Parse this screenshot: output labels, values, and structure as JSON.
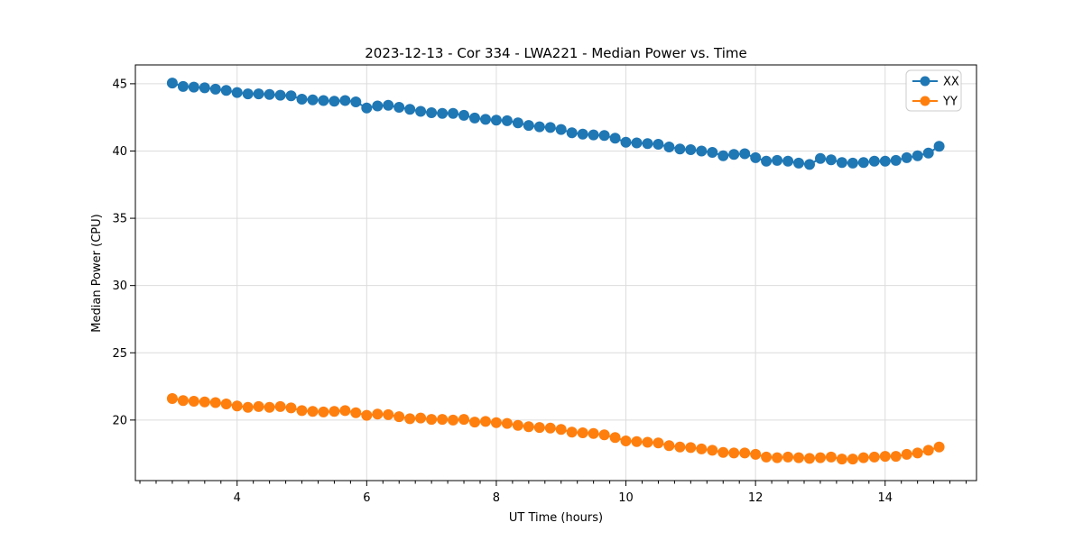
{
  "chart_data": {
    "type": "line",
    "title": "2023-12-13 - Cor 334 - LWA221 - Median Power vs. Time",
    "xlabel": "UT Time (hours)",
    "ylabel": "Median Power (CPU)",
    "xlim": [
      2.43,
      15.41
    ],
    "ylim": [
      15.5,
      46.4
    ],
    "xticks": [
      4,
      6,
      8,
      10,
      12,
      14
    ],
    "xtick_labels": [
      "4",
      "6",
      "8",
      "10",
      "12",
      "14"
    ],
    "x_minor_step": 0.25,
    "yticks": [
      20,
      25,
      30,
      35,
      40,
      45
    ],
    "ytick_labels": [
      "20",
      "25",
      "30",
      "35",
      "40",
      "45"
    ],
    "grid": true,
    "legend": {
      "position": "upper right",
      "entries": [
        "XX",
        "YY"
      ]
    },
    "colors": {
      "grid": "#dcdcdc",
      "spine": "#000000",
      "text": "#000000",
      "series_xx": "#1f77b4",
      "series_yy": "#ff7f0e",
      "legend_border": "#cccccc",
      "legend_bg": "#ffffff"
    },
    "x": [
      3.0,
      3.167,
      3.333,
      3.5,
      3.667,
      3.833,
      4.0,
      4.167,
      4.333,
      4.5,
      4.667,
      4.833,
      5.0,
      5.167,
      5.333,
      5.5,
      5.667,
      5.833,
      6.0,
      6.167,
      6.333,
      6.5,
      6.667,
      6.833,
      7.0,
      7.167,
      7.333,
      7.5,
      7.667,
      7.833,
      8.0,
      8.167,
      8.333,
      8.5,
      8.667,
      8.833,
      9.0,
      9.167,
      9.333,
      9.5,
      9.667,
      9.833,
      10.0,
      10.167,
      10.333,
      10.5,
      10.667,
      10.833,
      11.0,
      11.167,
      11.333,
      11.5,
      11.667,
      11.833,
      12.0,
      12.167,
      12.333,
      12.5,
      12.667,
      12.833,
      13.0,
      13.167,
      13.333,
      13.5,
      13.667,
      13.833,
      14.0,
      14.167,
      14.333,
      14.5,
      14.667,
      14.833
    ],
    "series": [
      {
        "name": "XX",
        "color": "#1f77b4",
        "values": [
          45.05,
          44.8,
          44.75,
          44.7,
          44.6,
          44.5,
          44.35,
          44.25,
          44.25,
          44.2,
          44.15,
          44.1,
          43.85,
          43.8,
          43.75,
          43.7,
          43.75,
          43.65,
          43.2,
          43.35,
          43.4,
          43.25,
          43.1,
          42.95,
          42.85,
          42.8,
          42.8,
          42.65,
          42.45,
          42.35,
          42.3,
          42.25,
          42.1,
          41.9,
          41.8,
          41.75,
          41.6,
          41.35,
          41.25,
          41.2,
          41.15,
          40.95,
          40.65,
          40.6,
          40.55,
          40.5,
          40.3,
          40.15,
          40.1,
          40.0,
          39.9,
          39.65,
          39.75,
          39.8,
          39.5,
          39.25,
          39.3,
          39.25,
          39.1,
          39.0,
          39.45,
          39.35,
          39.15,
          39.1,
          39.15,
          39.25,
          39.25,
          39.3,
          39.5,
          39.65,
          39.85,
          40.35
        ]
      },
      {
        "name": "YY",
        "color": "#ff7f0e",
        "values": [
          21.6,
          21.45,
          21.4,
          21.35,
          21.3,
          21.2,
          21.05,
          20.95,
          21.0,
          20.95,
          21.0,
          20.9,
          20.7,
          20.65,
          20.6,
          20.65,
          20.7,
          20.55,
          20.35,
          20.45,
          20.4,
          20.25,
          20.1,
          20.15,
          20.05,
          20.05,
          20.0,
          20.05,
          19.85,
          19.9,
          19.8,
          19.75,
          19.6,
          19.5,
          19.45,
          19.4,
          19.3,
          19.1,
          19.05,
          19.0,
          18.9,
          18.7,
          18.45,
          18.4,
          18.35,
          18.3,
          18.1,
          18.0,
          17.95,
          17.85,
          17.75,
          17.6,
          17.55,
          17.55,
          17.45,
          17.25,
          17.2,
          17.25,
          17.2,
          17.15,
          17.2,
          17.25,
          17.1,
          17.1,
          17.2,
          17.25,
          17.3,
          17.3,
          17.45,
          17.55,
          17.75,
          18.0
        ]
      }
    ]
  }
}
